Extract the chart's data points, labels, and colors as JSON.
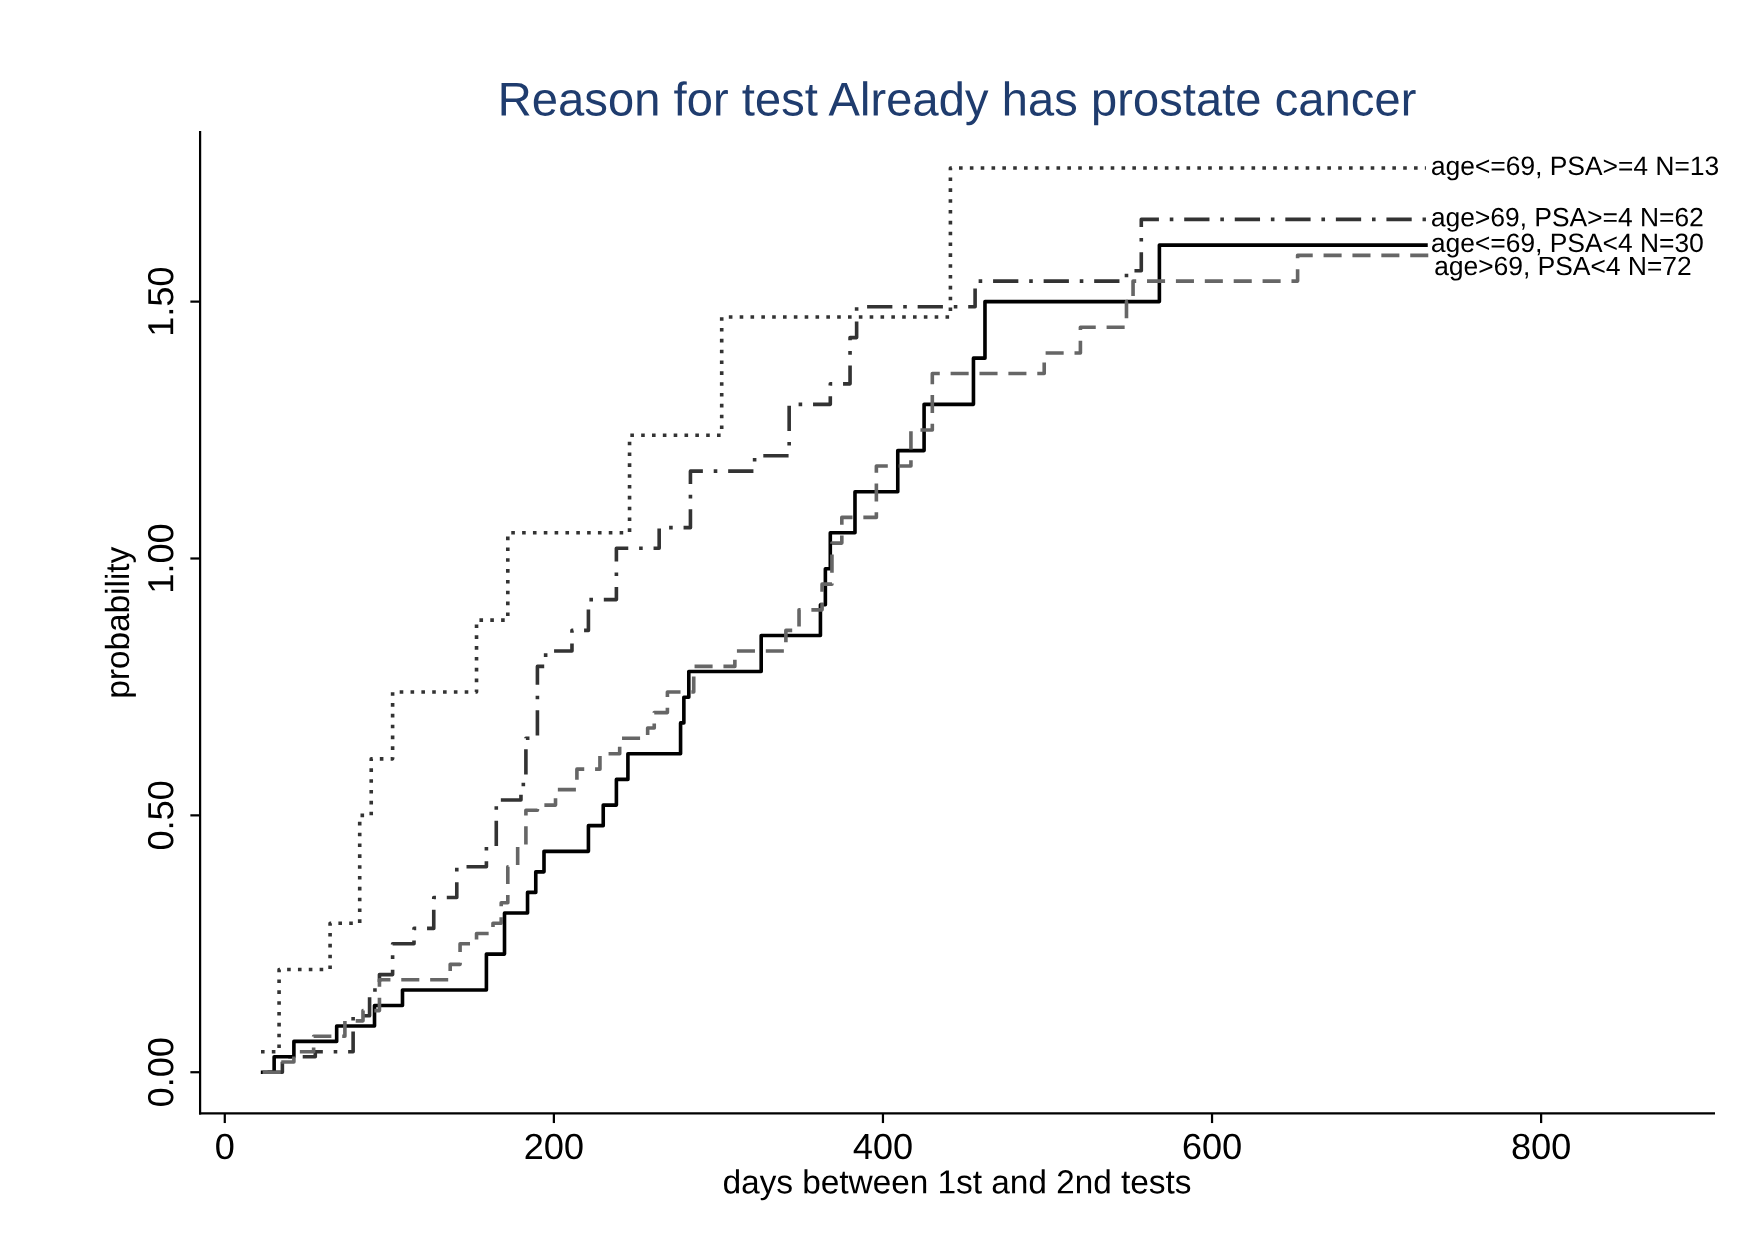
{
  "chart_data": {
    "type": "step",
    "title": "Reason for test Already has prostate cancer",
    "xlabel": "days between 1st and 2nd tests",
    "ylabel": "probability",
    "xlim": [
      -15,
      905
    ],
    "ylim": [
      -0.08,
      1.83
    ],
    "xticks": [
      0,
      200,
      400,
      600,
      800
    ],
    "yticks": [
      {
        "value": 0,
        "label": "0.00"
      },
      {
        "value": 0.5,
        "label": "0.50"
      },
      {
        "value": 1,
        "label": "1.00"
      },
      {
        "value": 1.5,
        "label": "1.50"
      }
    ],
    "grid": false,
    "legend": false,
    "series": [
      {
        "name": "age<=69, PSA>=4 N=13",
        "color": "#333333",
        "line_style": "dotted",
        "x": [
          22,
          33,
          64,
          82,
          89,
          102,
          153,
          172,
          246,
          302,
          441,
          730
        ],
        "values": [
          0.04,
          0.2,
          0.29,
          0.5,
          0.61,
          0.74,
          0.88,
          1.05,
          1.24,
          1.47,
          1.76,
          1.76
        ]
      },
      {
        "name": "age>69, PSA>=4 N=62",
        "color": "#333333",
        "line_style": "dashdot",
        "x": [
          26,
          35,
          55,
          78,
          88,
          94,
          102,
          115,
          127,
          141,
          159,
          165,
          180,
          183,
          190,
          195,
          211,
          221,
          238,
          264,
          283,
          322,
          343,
          368,
          380,
          384,
          456,
          548,
          557,
          730
        ],
        "values": [
          0.0,
          0.03,
          0.04,
          0.11,
          0.16,
          0.19,
          0.25,
          0.28,
          0.34,
          0.4,
          0.44,
          0.53,
          0.56,
          0.65,
          0.79,
          0.82,
          0.86,
          0.92,
          1.02,
          1.06,
          1.17,
          1.2,
          1.3,
          1.34,
          1.43,
          1.49,
          1.54,
          1.56,
          1.66,
          1.66
        ]
      },
      {
        "name": "age<=69, PSA<4 N=30",
        "color": "#000000",
        "line_style": "solid",
        "x": [
          23,
          30,
          42,
          68,
          91,
          108,
          159,
          170,
          184,
          189,
          194,
          221,
          230,
          238,
          245,
          277,
          279,
          282,
          326,
          362,
          365,
          368,
          383,
          409,
          425,
          455,
          462,
          568,
          730
        ],
        "values": [
          0.0,
          0.03,
          0.06,
          0.09,
          0.13,
          0.16,
          0.23,
          0.31,
          0.35,
          0.39,
          0.43,
          0.48,
          0.52,
          0.57,
          0.62,
          0.68,
          0.73,
          0.78,
          0.85,
          0.91,
          0.98,
          1.05,
          1.13,
          1.21,
          1.3,
          1.39,
          1.5,
          1.61,
          1.61
        ]
      },
      {
        "name": "age>69, PSA<4 N=72",
        "color": "#666666",
        "line_style": "dashed",
        "x": [
          23,
          34,
          42,
          54,
          73,
          84,
          94,
          137,
          143,
          153,
          163,
          168,
          172,
          178,
          183,
          190,
          201,
          214,
          228,
          240,
          257,
          261,
          269,
          285,
          310,
          341,
          349,
          363,
          369,
          375,
          396,
          417,
          430,
          498,
          520,
          548,
          552,
          652,
          732
        ],
        "values": [
          0.0,
          0.02,
          0.04,
          0.07,
          0.1,
          0.12,
          0.18,
          0.21,
          0.25,
          0.27,
          0.29,
          0.33,
          0.4,
          0.44,
          0.51,
          0.52,
          0.55,
          0.59,
          0.62,
          0.65,
          0.67,
          0.7,
          0.74,
          0.79,
          0.82,
          0.86,
          0.9,
          0.95,
          1.03,
          1.08,
          1.18,
          1.25,
          1.36,
          1.4,
          1.45,
          1.5,
          1.54,
          1.59,
          1.59
        ]
      }
    ]
  }
}
